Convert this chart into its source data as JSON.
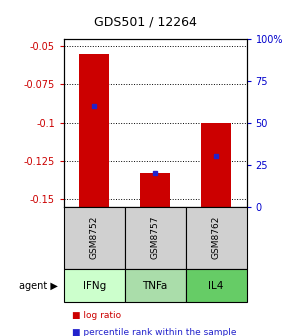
{
  "title": "GDS501 / 12264",
  "samples": [
    "GSM8752",
    "GSM8757",
    "GSM8762"
  ],
  "agents": [
    "IFNg",
    "TNFa",
    "IL4"
  ],
  "log_ratios": [
    -0.055,
    -0.133,
    -0.1
  ],
  "percentile_ranks": [
    60,
    20,
    30
  ],
  "ylim": [
    -0.155,
    -0.045
  ],
  "yticks": [
    -0.05,
    -0.075,
    -0.1,
    -0.125,
    -0.15
  ],
  "ytick_labels": [
    "-0.05",
    "-0.075",
    "-0.1",
    "-0.125",
    "-0.15"
  ],
  "y2ticks": [
    0,
    25,
    50,
    75,
    100
  ],
  "y2tick_labels": [
    "0",
    "25",
    "50",
    "75",
    "100%"
  ],
  "bar_color": "#cc0000",
  "dot_color": "#2222cc",
  "sample_bg": "#d0d0d0",
  "agent_bg_ifng": "#ccffcc",
  "agent_bg_tnfa": "#aaddaa",
  "agent_bg_il4": "#66cc66",
  "bar_width": 0.5,
  "legend_red": "log ratio",
  "legend_blue": "percentile rank within the sample"
}
